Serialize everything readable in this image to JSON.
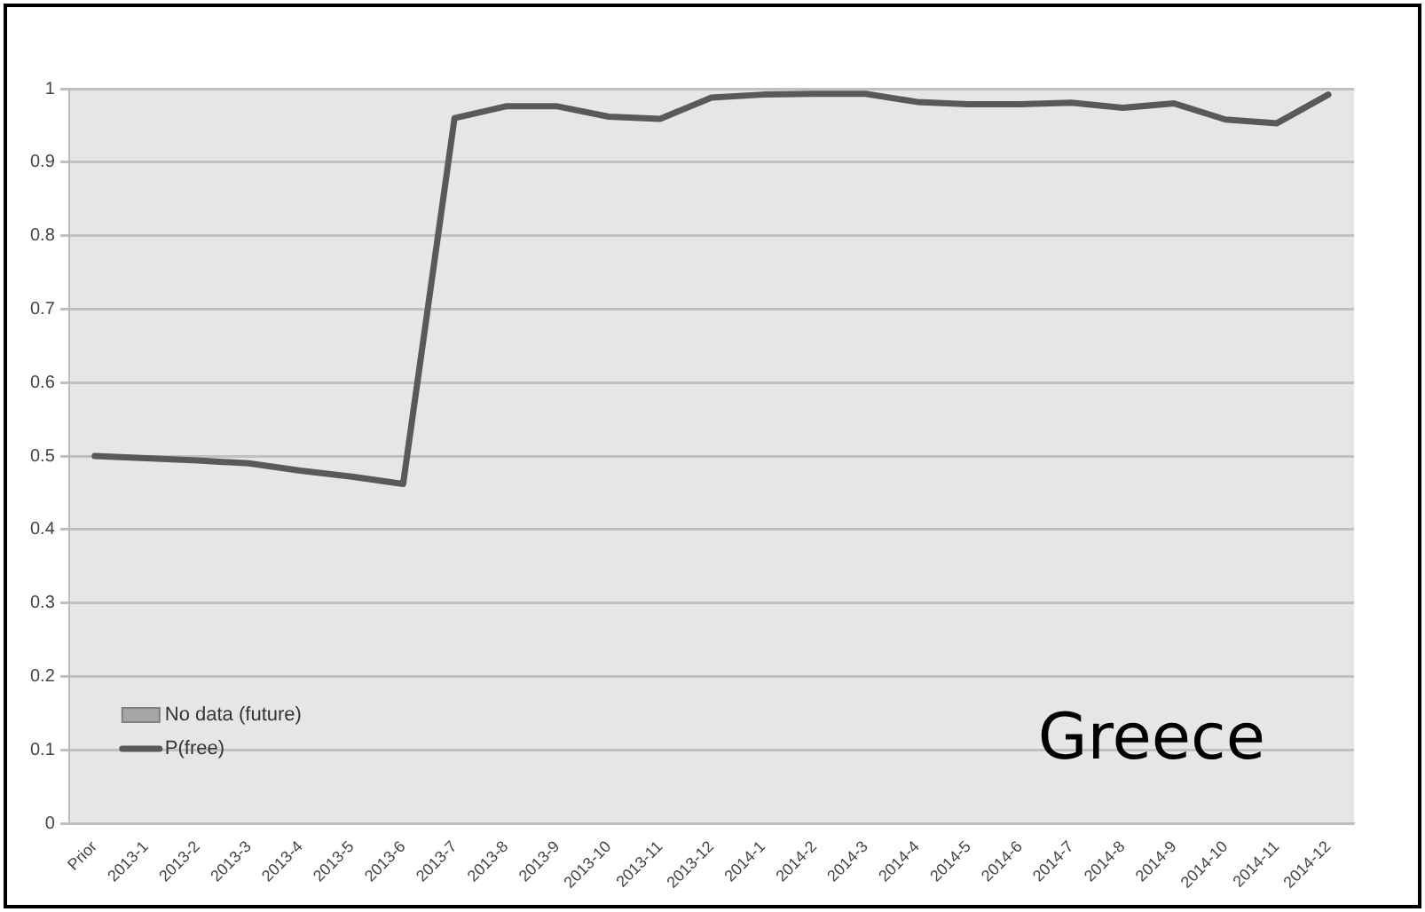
{
  "chart_data": {
    "type": "line",
    "categories": [
      "Prior",
      "2013-1",
      "2013-2",
      "2013-3",
      "2013-4",
      "2013-5",
      "2013-6",
      "2013-7",
      "2013-8",
      "2013-9",
      "2013-10",
      "2013-11",
      "2013-12",
      "2014-1",
      "2014-2",
      "2014-3",
      "2014-4",
      "2014-5",
      "2014-6",
      "2014-7",
      "2014-8",
      "2014-9",
      "2014-10",
      "2014-11",
      "2014-12"
    ],
    "series": [
      {
        "name": "No data (future)",
        "type": "bar",
        "color": "#a6a6a6",
        "values": [
          null,
          null,
          null,
          null,
          null,
          null,
          null,
          null,
          null,
          null,
          null,
          null,
          null,
          null,
          null,
          null,
          null,
          null,
          null,
          null,
          null,
          null,
          null,
          null,
          null
        ]
      },
      {
        "name": "P(free)",
        "color": "#595959",
        "values": [
          0.5,
          0.497,
          0.494,
          0.49,
          0.48,
          0.472,
          0.462,
          0.96,
          0.976,
          0.976,
          0.962,
          0.959,
          0.988,
          0.992,
          0.993,
          0.993,
          0.982,
          0.979,
          0.979,
          0.981,
          0.974,
          0.98,
          0.958,
          0.953,
          0.992
        ]
      }
    ],
    "ylim": [
      0,
      1
    ],
    "yticks": [
      0,
      0.1,
      0.2,
      0.3,
      0.4,
      0.5,
      0.6,
      0.7,
      0.8,
      0.9,
      1
    ],
    "grid": "y",
    "legend": "bottom left",
    "marker": "none",
    "line_style": "solid",
    "annotations": [
      "Greece"
    ]
  }
}
